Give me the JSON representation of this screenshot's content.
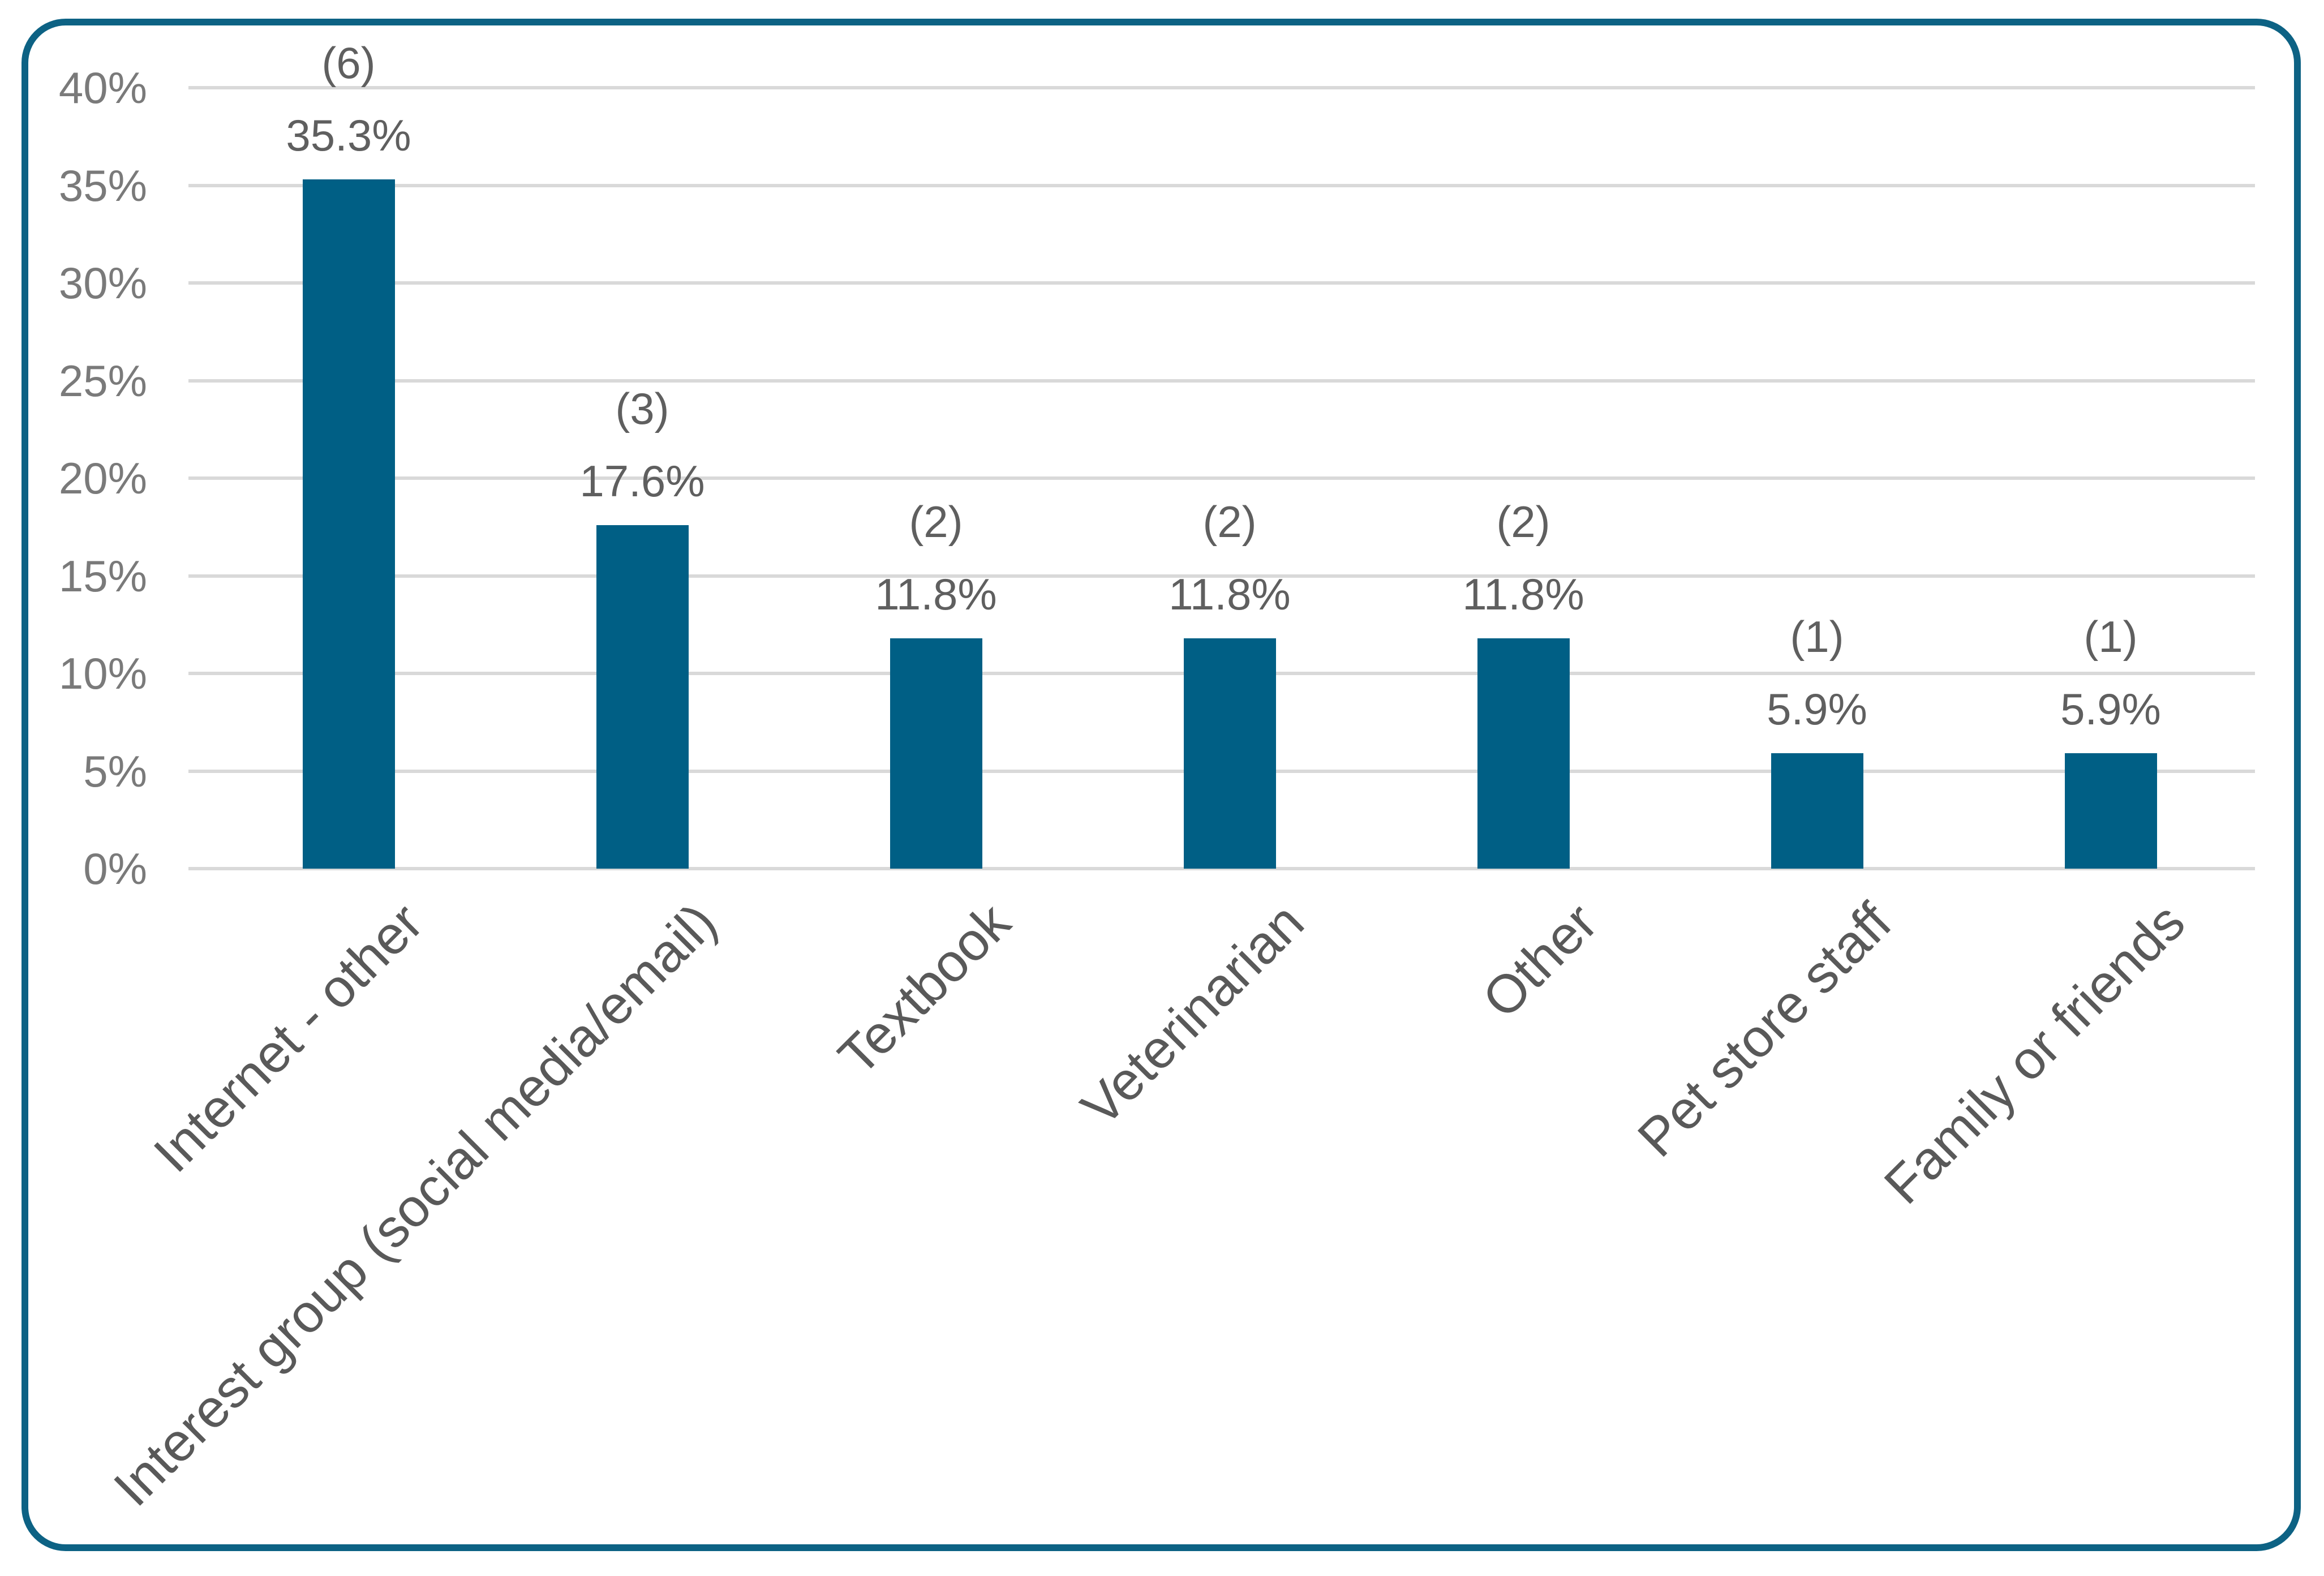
{
  "chart_data": {
    "type": "bar",
    "title": "",
    "xlabel": "",
    "ylabel": "",
    "categories": [
      "Internet - other",
      "Interest group (social media/email)",
      "Textbook",
      "Veterinarian",
      "Other",
      "Pet store staff",
      "Family or friends"
    ],
    "counts": [
      6,
      3,
      2,
      2,
      2,
      1,
      1
    ],
    "values": [
      35.3,
      17.6,
      11.8,
      11.8,
      11.8,
      5.9,
      5.9
    ],
    "value_labels": [
      [
        "(6)",
        "35.3%"
      ],
      [
        "(3)",
        "17.6%"
      ],
      [
        "(2)",
        "11.8%"
      ],
      [
        "(2)",
        "11.8%"
      ],
      [
        "(2)",
        "11.8%"
      ],
      [
        "(1)",
        "5.9%"
      ],
      [
        "(1)",
        "5.9%"
      ]
    ],
    "ylim": [
      0,
      40
    ],
    "ytick_step": 5,
    "ytick_labels": [
      "0%",
      "5%",
      "10%",
      "15%",
      "20%",
      "25%",
      "30%",
      "35%",
      "40%"
    ],
    "grid": true,
    "legend": false,
    "colors": {
      "bar": "#005f85",
      "frame": "#0d6284",
      "gridline": "#d9d9d9",
      "tick_label": "#7a7a7a",
      "data_label": "#5f5f5f",
      "category_label": "#595959",
      "background": "#ffffff"
    }
  }
}
